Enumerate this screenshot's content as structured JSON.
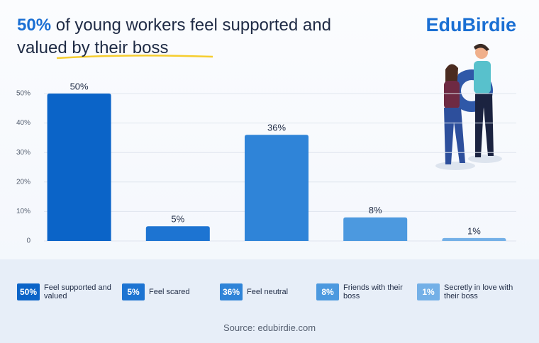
{
  "brand": "EduBirdie",
  "source": "Source: edubirdie.com",
  "chart_data": {
    "type": "bar",
    "title_highlight": "50%",
    "title": "of young workers feel supported and valued by their boss",
    "categories": [
      "Feel supported and valued",
      "Feel scared",
      "Feel neutral",
      "Friends with their boss",
      "Secretly in love with their boss"
    ],
    "values": [
      50,
      5,
      36,
      8,
      1
    ],
    "value_labels": [
      "50%",
      "5%",
      "36%",
      "8%",
      "1%"
    ],
    "colors": [
      "#0b64c8",
      "#1d74d2",
      "#2f84d8",
      "#4c99df",
      "#74b0e7"
    ],
    "ylim": [
      0,
      50
    ],
    "yticks": [
      0,
      {
        "value": 10,
        "label": "10%"
      },
      {
        "value": 20,
        "label": "20%"
      },
      {
        "value": 30,
        "label": "30%"
      },
      {
        "value": 40,
        "label": "40%"
      },
      {
        "value": 50,
        "label": "50%"
      }
    ],
    "grid": true
  }
}
